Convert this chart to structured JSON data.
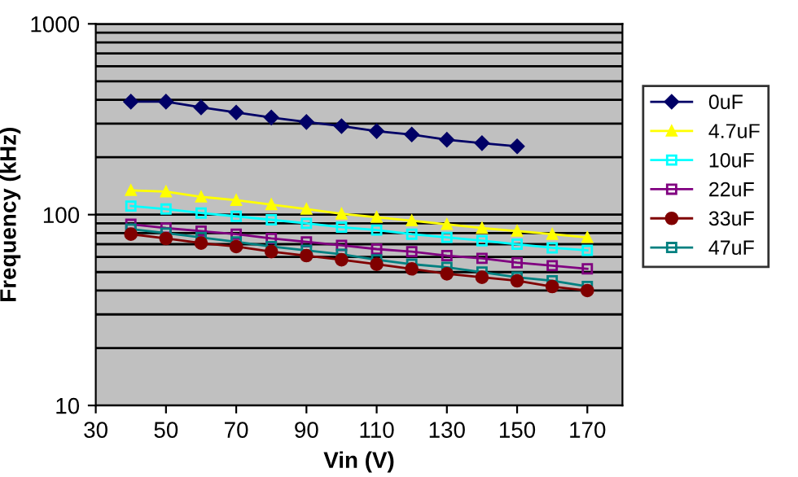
{
  "chart_data": {
    "type": "line",
    "xlabel": "Vin (V)",
    "ylabel": "Frequency (kHz)",
    "x": [
      40,
      50,
      60,
      70,
      80,
      90,
      100,
      110,
      120,
      130,
      140,
      150,
      160,
      170
    ],
    "series": [
      {
        "name": "0uF",
        "color": "#000066",
        "marker": "diamond",
        "values": [
          391,
          391,
          365,
          343,
          323,
          306,
          291,
          274,
          263,
          247,
          237,
          228,
          null,
          null
        ]
      },
      {
        "name": "4.7uF",
        "color": "#ffff00",
        "marker": "triangle",
        "values": [
          134,
          132,
          124,
          119,
          113,
          107,
          101,
          97,
          93,
          89,
          85,
          82,
          79,
          76
        ]
      },
      {
        "name": "10uF",
        "color": "#00ffff",
        "marker": "square",
        "values": [
          111,
          107,
          102,
          98,
          94,
          90,
          86,
          83,
          79,
          76,
          73,
          70,
          67,
          65
        ]
      },
      {
        "name": "22uF",
        "color": "#800080",
        "marker": "square",
        "values": [
          89,
          85,
          82,
          79,
          75,
          72,
          69,
          66,
          64,
          61,
          59,
          56,
          54,
          52
        ]
      },
      {
        "name": "33uF",
        "color": "#800000",
        "marker": "circle",
        "values": [
          79,
          75,
          71,
          68,
          64,
          61,
          58,
          55,
          52,
          49,
          47,
          45,
          42,
          40
        ]
      },
      {
        "name": "47uF",
        "color": "#008080",
        "marker": "square",
        "values": [
          84,
          80,
          76,
          72,
          68,
          65,
          62,
          58,
          55,
          53,
          50,
          47,
          45,
          42
        ]
      }
    ],
    "log": "y",
    "xlim": [
      30,
      180
    ],
    "xticks": [
      30,
      50,
      70,
      90,
      110,
      130,
      150,
      170
    ],
    "ylim": [
      10,
      1000
    ],
    "yticks": [
      10,
      {
        "value": 20,
        "label": null
      },
      {
        "value": 30,
        "label": null
      },
      {
        "value": 40,
        "label": null
      },
      {
        "value": 50,
        "label": null
      },
      {
        "value": 60,
        "label": null
      },
      {
        "value": 70,
        "label": null
      },
      {
        "value": 80,
        "label": null
      },
      {
        "value": 90,
        "label": null
      },
      100,
      {
        "value": 200,
        "label": null
      },
      {
        "value": 300,
        "label": null
      },
      {
        "value": 400,
        "label": null
      },
      {
        "value": 500,
        "label": null
      },
      {
        "value": 600,
        "label": null
      },
      {
        "value": 700,
        "label": null
      },
      {
        "value": 800,
        "label": null
      },
      {
        "value": 900,
        "label": null
      },
      1000
    ],
    "grid": "y",
    "legend": "right",
    "line_style": "solid"
  }
}
